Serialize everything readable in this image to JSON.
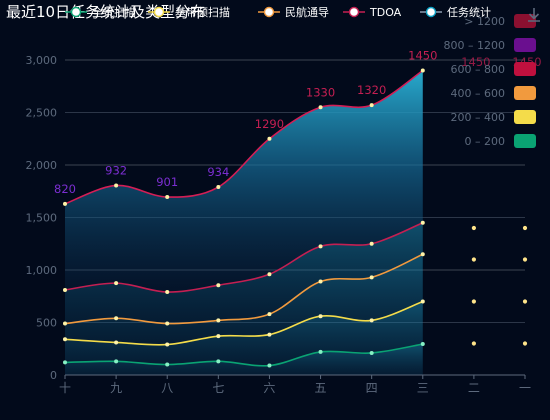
{
  "chart_data": {
    "type": "area",
    "title": "最近10日任务统计及类型分布",
    "categories": [
      "十",
      "九",
      "八",
      "七",
      "六",
      "五",
      "四",
      "三",
      "二",
      "一"
    ],
    "ylim": [
      0,
      3000
    ],
    "yticks": [
      0,
      500,
      1000,
      1500,
      2000,
      2500,
      3000
    ],
    "yticks_labels": [
      "0",
      "500",
      "1,000",
      "1,500",
      "2,000",
      "2,500",
      "3,000"
    ],
    "grid": true,
    "series": [
      {
        "name": "全景扫描",
        "values": [
          120,
          130,
          100,
          130,
          90,
          220,
          210,
          295,
          null,
          null
        ],
        "color": "#0aa373"
      },
      {
        "name": "基带频扫描",
        "values": [
          340,
          310,
          290,
          370,
          385,
          560,
          520,
          700,
          null,
          null
        ],
        "color": "#f4dc4a"
      },
      {
        "name": "民航通导",
        "values": [
          490,
          540,
          490,
          520,
          580,
          890,
          930,
          1150,
          null,
          null
        ],
        "color": "#f19a3e"
      },
      {
        "name": "TDOA",
        "values": [
          810,
          875,
          790,
          855,
          960,
          1225,
          1250,
          1450,
          null,
          null
        ],
        "color": "#c41f52"
      },
      {
        "name": "任务统计",
        "values": [
          1630,
          1805,
          1695,
          1790,
          2250,
          2550,
          2570,
          2900,
          null,
          null
        ],
        "color": "#0aa0c4"
      }
    ],
    "total_labels": [
      {
        "index": 0,
        "value": 820,
        "color": "#7b2ed0"
      },
      {
        "index": 1,
        "value": 932,
        "color": "#7b2ed0"
      },
      {
        "index": 2,
        "value": 901,
        "color": "#7b2ed0"
      },
      {
        "index": 3,
        "value": 934,
        "color": "#7b2ed0"
      },
      {
        "index": 4,
        "value": 1290,
        "color": "#c41f52"
      },
      {
        "index": 5,
        "value": 1330,
        "color": "#c41f52"
      },
      {
        "index": 6,
        "value": 1320,
        "color": "#c41f52"
      },
      {
        "index": 7,
        "value": 1450,
        "color": "#c41f52"
      }
    ],
    "future_points": {
      "indices": [
        8,
        9
      ],
      "values": [
        1400,
        1100,
        700,
        300
      ]
    },
    "visual_map": [
      {
        "label": "> 1200",
        "color": "#8b1030"
      },
      {
        "label": "800 – 1200",
        "color": "#6a0f8f"
      },
      {
        "label": "600 – 800",
        "color": "#c0103e"
      },
      {
        "label": "400 – 600",
        "color": "#f19a3e"
      },
      {
        "label": "200 – 400",
        "color": "#f4dc4a"
      },
      {
        "label": "0 – 200",
        "color": "#0aa373"
      }
    ],
    "legend_position": "top-right",
    "overlap_labels": [
      {
        "index": 8,
        "text": "1450",
        "color": "#c41f52"
      },
      {
        "index": 9,
        "text": "1450",
        "color": "#c41f52"
      }
    ]
  },
  "toolbox": {
    "icon": "download-icon"
  },
  "colors": {
    "background": "#020a1b",
    "axis": "#5d6a7d",
    "grid": "#26303f"
  }
}
